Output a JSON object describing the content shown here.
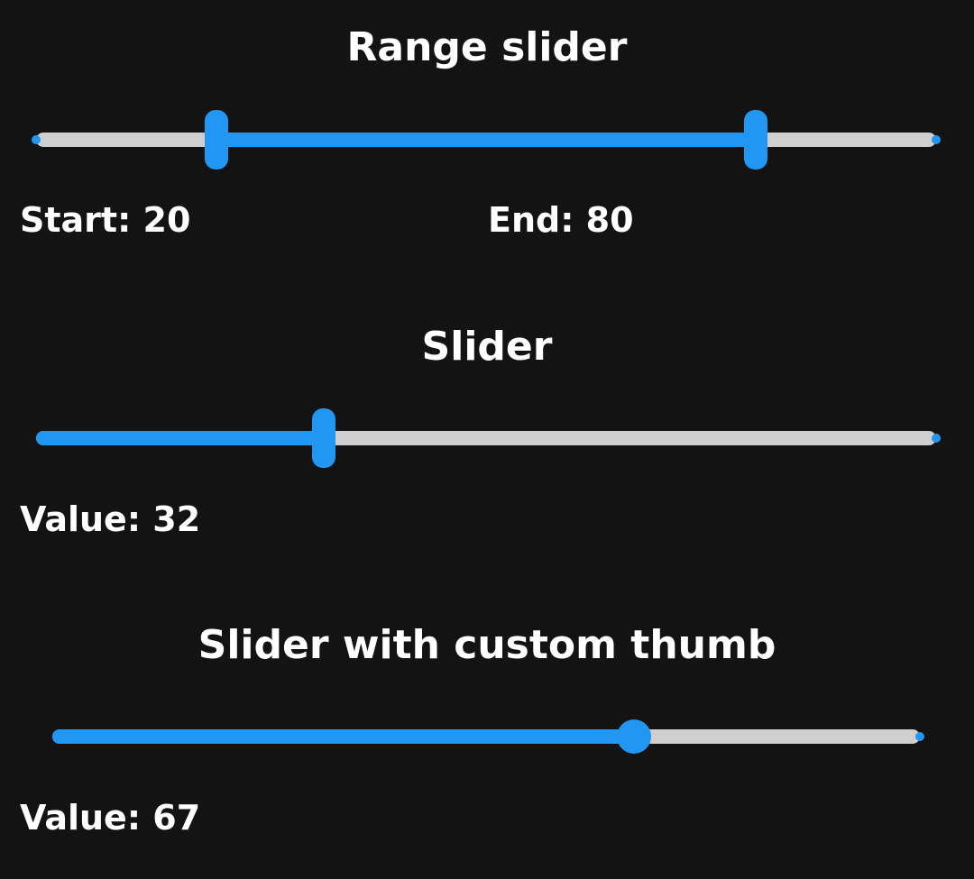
{
  "colors": {
    "background": "#131313",
    "accent": "#2196f3",
    "inactive_track": "#cfcfcf",
    "text": "#ffffff"
  },
  "range_slider": {
    "title": "Range slider",
    "min": 0,
    "max": 100,
    "start": 20,
    "end": 80,
    "start_label": "Start: 20",
    "end_label": "End: 80"
  },
  "slider": {
    "title": "Slider",
    "min": 0,
    "max": 100,
    "value": 32,
    "value_label": "Value: 32"
  },
  "custom_slider": {
    "title": "Slider with custom thumb",
    "min": 0,
    "max": 100,
    "value": 67,
    "value_label": "Value: 67"
  }
}
